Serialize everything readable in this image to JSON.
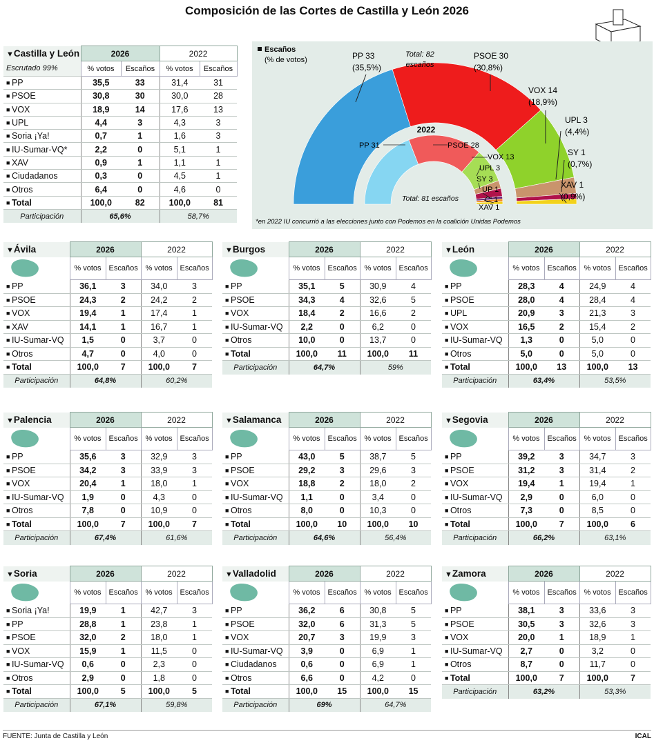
{
  "title": "Composición de las Cortes de Castilla y León 2026",
  "years": [
    "2026",
    "2022"
  ],
  "columns": [
    "% votos",
    "Escaños",
    "% votos",
    "Escaños"
  ],
  "participation_label": "Participación",
  "main_table": {
    "name": "Castilla y León",
    "note": "Escrutado 99%",
    "rows": [
      [
        "PP",
        "35,5",
        "33",
        "31,4",
        "31"
      ],
      [
        "PSOE",
        "30,8",
        "30",
        "30,0",
        "28"
      ],
      [
        "VOX",
        "18,9",
        "14",
        "17,6",
        "13"
      ],
      [
        "UPL",
        "4,4",
        "3",
        "4,3",
        "3"
      ],
      [
        "Soria ¡Ya!",
        "0,7",
        "1",
        "1,6",
        "3"
      ],
      [
        "IU-Sumar-VQ*",
        "2,2",
        "0",
        "5,1",
        "1"
      ],
      [
        "XAV",
        "0,9",
        "1",
        "1,1",
        "1"
      ],
      [
        "Ciudadanos",
        "0,3",
        "0",
        "4,5",
        "1"
      ],
      [
        "Otros",
        "6,4",
        "0",
        "4,6",
        "0"
      ],
      [
        "Total",
        "100,0",
        "82",
        "100,0",
        "81"
      ]
    ],
    "participation": [
      "65,6%",
      "58,7%"
    ]
  },
  "chart_data": {
    "type": "hemicycle",
    "legend_title": "Escaños",
    "legend_subtitle": "(% de votos)",
    "footnote": "*en 2022 IU concurrió a las elecciones junto con Podemos en la coalición Unidas Podemos",
    "rings": [
      {
        "name": "2026",
        "total_label": [
          "Total: 82",
          "escaños"
        ],
        "series": [
          {
            "name": "PP",
            "seats": 33,
            "label": "PP 33",
            "pct_label": "(35,5%)",
            "color": "#3a9edb"
          },
          {
            "name": "PSOE",
            "seats": 30,
            "label": "PSOE 30",
            "pct_label": "(30,8%)",
            "color": "#ee1c1c"
          },
          {
            "name": "VOX",
            "seats": 14,
            "label": "VOX 14",
            "pct_label": "(18,9%)",
            "color": "#8fd22b"
          },
          {
            "name": "UPL",
            "seats": 3,
            "label": "UPL 3",
            "pct_label": "(4,4%)",
            "color": "#c9946c"
          },
          {
            "name": "SY",
            "seats": 1,
            "label": "SY 1",
            "pct_label": "(0,7%)",
            "color": "#b0124a"
          },
          {
            "name": "XAV",
            "seats": 1,
            "label": "XAV 1",
            "pct_label": "(0,9%)",
            "color": "#f2d21c"
          }
        ]
      },
      {
        "name": "2022",
        "total_label": [
          "Total: 81 escaños"
        ],
        "series": [
          {
            "name": "PP",
            "seats": 31,
            "label": "PP 31",
            "color": "#86d6f2"
          },
          {
            "name": "PSOE",
            "seats": 28,
            "label": "PSOE 28",
            "color": "#f05a5a"
          },
          {
            "name": "VOX",
            "seats": 13,
            "label": "VOX 13",
            "color": "#a6dd55"
          },
          {
            "name": "UPL",
            "seats": 3,
            "label": "UPL 3",
            "color": "#c9946c"
          },
          {
            "name": "SY",
            "seats": 3,
            "label": "SY 3",
            "color": "#b0124a"
          },
          {
            "name": "UP",
            "seats": 1,
            "label": "UP 1",
            "color": "#6b2c7a"
          },
          {
            "name": "Cs",
            "seats": 1,
            "label": "C' 1",
            "color": "#f08c2a"
          },
          {
            "name": "XAV",
            "seats": 1,
            "label": "XAV 1",
            "color": "#f2d21c"
          }
        ]
      }
    ]
  },
  "provinces": [
    {
      "name": "Ávila",
      "rows": [
        [
          "PP",
          "36,1",
          "3",
          "34,0",
          "3"
        ],
        [
          "PSOE",
          "24,3",
          "2",
          "24,2",
          "2"
        ],
        [
          "VOX",
          "19,4",
          "1",
          "17,4",
          "1"
        ],
        [
          "XAV",
          "14,1",
          "1",
          "16,7",
          "1"
        ],
        [
          "IU-Sumar-VQ",
          "1,5",
          "0",
          "3,7",
          "0"
        ],
        [
          "Otros",
          "4,7",
          "0",
          "4,0",
          "0"
        ],
        [
          "Total",
          "100,0",
          "7",
          "100,0",
          "7"
        ]
      ],
      "participation": [
        "64,8%",
        "60,2%"
      ]
    },
    {
      "name": "Burgos",
      "rows": [
        [
          "PP",
          "35,1",
          "5",
          "30,9",
          "4"
        ],
        [
          "PSOE",
          "34,3",
          "4",
          "32,6",
          "5"
        ],
        [
          "VOX",
          "18,4",
          "2",
          "16,6",
          "2"
        ],
        [
          "IU-Sumar-VQ",
          "2,2",
          "0",
          "6,2",
          "0"
        ],
        [
          "Otros",
          "10,0",
          "0",
          "13,7",
          "0"
        ],
        [
          "Total",
          "100,0",
          "11",
          "100,0",
          "11"
        ]
      ],
      "participation": [
        "64,7%",
        "59%"
      ]
    },
    {
      "name": "León",
      "rows": [
        [
          "PP",
          "28,3",
          "4",
          "24,9",
          "4"
        ],
        [
          "PSOE",
          "28,0",
          "4",
          "28,4",
          "4"
        ],
        [
          "UPL",
          "20,9",
          "3",
          "21,3",
          "3"
        ],
        [
          "VOX",
          "16,5",
          "2",
          "15,4",
          "2"
        ],
        [
          "IU-Sumar-VQ",
          "1,3",
          "0",
          "5,0",
          "0"
        ],
        [
          "Otros",
          "5,0",
          "0",
          "5,0",
          "0"
        ],
        [
          "Total",
          "100,0",
          "13",
          "100,0",
          "13"
        ]
      ],
      "participation": [
        "63,4%",
        "53,5%"
      ]
    },
    {
      "name": "Palencia",
      "rows": [
        [
          "PP",
          "35,6",
          "3",
          "32,9",
          "3"
        ],
        [
          "PSOE",
          "34,2",
          "3",
          "33,9",
          "3"
        ],
        [
          "VOX",
          "20,4",
          "1",
          "18,0",
          "1"
        ],
        [
          "IU-Sumar-VQ",
          "1,9",
          "0",
          "4,3",
          "0"
        ],
        [
          "Otros",
          "7,8",
          "0",
          "10,9",
          "0"
        ],
        [
          "Total",
          "100,0",
          "7",
          "100,0",
          "7"
        ]
      ],
      "participation": [
        "67,4%",
        "61,6%"
      ]
    },
    {
      "name": "Salamanca",
      "rows": [
        [
          "PP",
          "43,0",
          "5",
          "38,7",
          "5"
        ],
        [
          "PSOE",
          "29,2",
          "3",
          "29,6",
          "3"
        ],
        [
          "VOX",
          "18,8",
          "2",
          "18,0",
          "2"
        ],
        [
          "IU-Sumar-VQ",
          "1,1",
          "0",
          "3,4",
          "0"
        ],
        [
          "Otros",
          "8,0",
          "0",
          "10,3",
          "0"
        ],
        [
          "Total",
          "100,0",
          "10",
          "100,0",
          "10"
        ]
      ],
      "participation": [
        "64,6%",
        "56,4%"
      ]
    },
    {
      "name": "Segovia",
      "rows": [
        [
          "PP",
          "39,2",
          "3",
          "34,7",
          "3"
        ],
        [
          "PSOE",
          "31,2",
          "3",
          "31,4",
          "2"
        ],
        [
          "VOX",
          "19,4",
          "1",
          "19,4",
          "1"
        ],
        [
          "IU-Sumar-VQ",
          "2,9",
          "0",
          "6,0",
          "0"
        ],
        [
          "Otros",
          "7,3",
          "0",
          "8,5",
          "0"
        ],
        [
          "Total",
          "100,0",
          "7",
          "100,0",
          "6"
        ]
      ],
      "participation": [
        "66,2%",
        "63,1%"
      ]
    },
    {
      "name": "Soria",
      "rows": [
        [
          "Soria ¡Ya!",
          "19,9",
          "1",
          "42,7",
          "3"
        ],
        [
          "PP",
          "28,8",
          "1",
          "23,8",
          "1"
        ],
        [
          "PSOE",
          "32,0",
          "2",
          "18,0",
          "1"
        ],
        [
          "VOX",
          "15,9",
          "1",
          "11,5",
          "0"
        ],
        [
          "IU-Sumar-VQ",
          "0,6",
          "0",
          "2,3",
          "0"
        ],
        [
          "Otros",
          "2,9",
          "0",
          "1,8",
          "0"
        ],
        [
          "Total",
          "100,0",
          "5",
          "100,0",
          "5"
        ]
      ],
      "participation": [
        "67,1%",
        "59,8%"
      ]
    },
    {
      "name": "Valladolid",
      "rows": [
        [
          "PP",
          "36,2",
          "6",
          "30,8",
          "5"
        ],
        [
          "PSOE",
          "32,0",
          "6",
          "31,3",
          "5"
        ],
        [
          "VOX",
          "20,7",
          "3",
          "19,9",
          "3"
        ],
        [
          "IU-Sumar-VQ",
          "3,9",
          "0",
          "6,9",
          "1"
        ],
        [
          "Ciudadanos",
          "0,6",
          "0",
          "6,9",
          "1"
        ],
        [
          "Otros",
          "6,6",
          "0",
          "4,2",
          "0"
        ],
        [
          "Total",
          "100,0",
          "15",
          "100,0",
          "15"
        ]
      ],
      "participation": [
        "69%",
        "64,7%"
      ]
    },
    {
      "name": "Zamora",
      "rows": [
        [
          "PP",
          "38,1",
          "3",
          "33,6",
          "3"
        ],
        [
          "PSOE",
          "30,5",
          "3",
          "32,6",
          "3"
        ],
        [
          "VOX",
          "20,0",
          "1",
          "18,9",
          "1"
        ],
        [
          "IU-Sumar-VQ",
          "2,7",
          "0",
          "3,2",
          "0"
        ],
        [
          "Otros",
          "8,7",
          "0",
          "11,7",
          "0"
        ],
        [
          "Total",
          "100,0",
          "7",
          "100,0",
          "7"
        ]
      ],
      "participation": [
        "63,2%",
        "53,3%"
      ]
    }
  ],
  "footer": {
    "source": "FUENTE: Junta de Castilla y León",
    "agency": "ICAL"
  }
}
